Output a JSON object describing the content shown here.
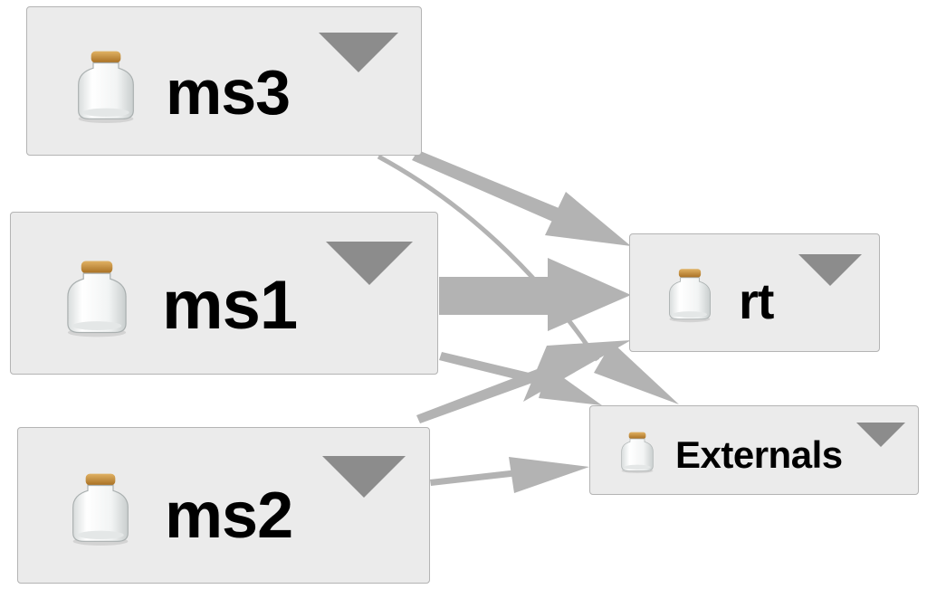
{
  "diagram": {
    "nodes": [
      {
        "id": "ms3",
        "label": "ms3",
        "icon": "jar-icon",
        "menu_icon": "dropdown-triangle-icon"
      },
      {
        "id": "ms1",
        "label": "ms1",
        "icon": "jar-icon",
        "menu_icon": "dropdown-triangle-icon"
      },
      {
        "id": "ms2",
        "label": "ms2",
        "icon": "jar-icon",
        "menu_icon": "dropdown-triangle-icon"
      },
      {
        "id": "rt",
        "label": "rt",
        "icon": "jar-icon",
        "menu_icon": "dropdown-triangle-icon"
      },
      {
        "id": "externals",
        "label": "Externals",
        "icon": "jar-icon",
        "menu_icon": "dropdown-triangle-icon"
      }
    ],
    "edges": [
      {
        "from": "ms3",
        "to": "rt",
        "weight": "medium"
      },
      {
        "from": "ms3",
        "to": "externals",
        "weight": "thin"
      },
      {
        "from": "ms1",
        "to": "rt",
        "weight": "heavy"
      },
      {
        "from": "ms1",
        "to": "externals",
        "weight": "medium"
      },
      {
        "from": "ms2",
        "to": "rt",
        "weight": "medium"
      },
      {
        "from": "ms2",
        "to": "externals",
        "weight": "thin"
      }
    ],
    "colors": {
      "node_fill": "#ebebeb",
      "node_border": "#b4b4b4",
      "edge": "#b3b3b3",
      "menu_triangle": "#8c8c8c",
      "jar_lid": "#c28a3c"
    }
  }
}
